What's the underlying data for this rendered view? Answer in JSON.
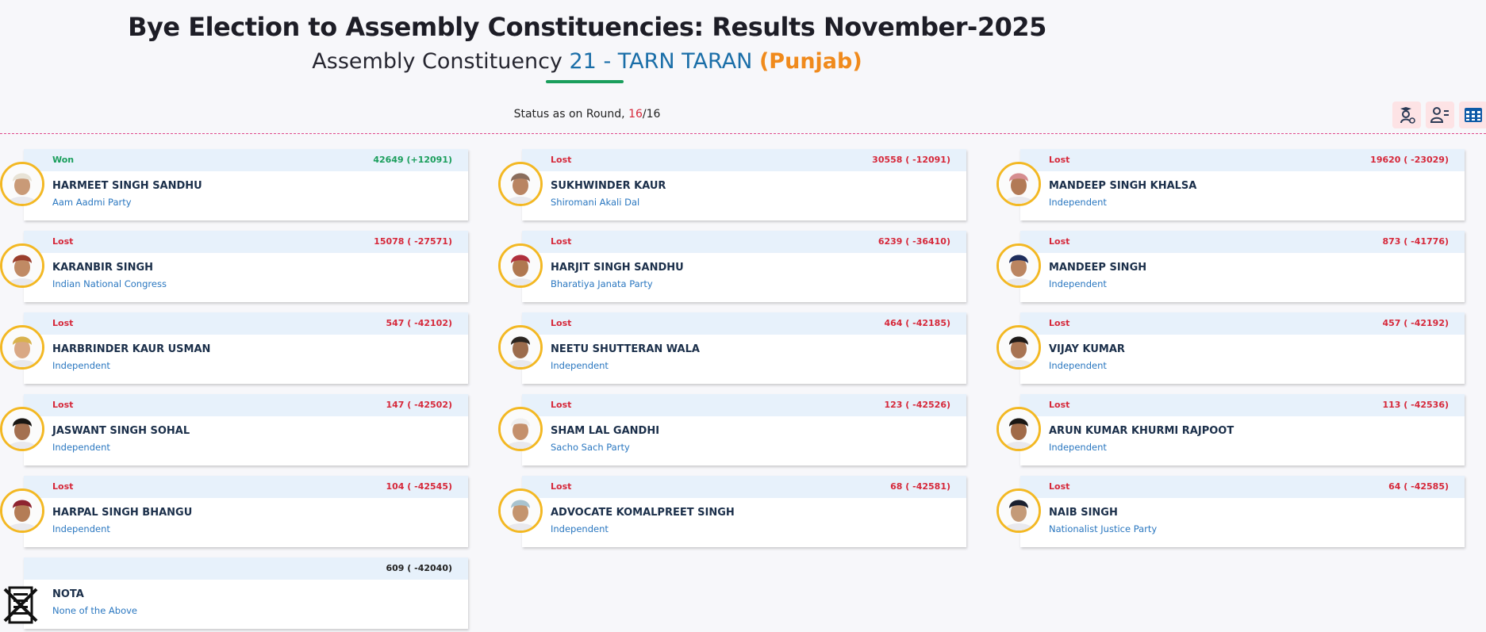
{
  "header": {
    "title": "Bye Election to Assembly Constituencies: Results November-2025",
    "ac_prefix": "Assembly Constituency",
    "ac_name": "21 - TARN TARAN",
    "state": "(Punjab)"
  },
  "status": {
    "label": "Status as on Round,",
    "current": "16",
    "total": "/16"
  },
  "toolbar": {
    "icons": [
      "candidate-stats-icon",
      "candidate-list-icon",
      "grid-view-icon"
    ]
  },
  "colors": {
    "won": "#1a9e5c",
    "lost": "#d6283a",
    "party": "#2a77c0",
    "ring": "#f3b823",
    "header_bg": "#e7f1fb"
  },
  "candidates": [
    {
      "status": "Won",
      "votes": "42649 (+12091)",
      "name": "HARMEET SINGH SANDHU",
      "party": "Aam Aadmi Party",
      "turban": "#e8e3d6",
      "skin": "#c99a77"
    },
    {
      "status": "Lost",
      "votes": "30558 ( -12091)",
      "name": "SUKHWINDER KAUR",
      "party": "Shiromani Akali Dal",
      "turban": "#8a6d5c",
      "skin": "#b98462"
    },
    {
      "status": "Lost",
      "votes": "19620 ( -23029)",
      "name": "MANDEEP SINGH KHALSA",
      "party": "Independent",
      "turban": "#d68d8f",
      "skin": "#b27a56"
    },
    {
      "status": "Lost",
      "votes": "15078 ( -27571)",
      "name": "KARANBIR SINGH",
      "party": "Indian National Congress",
      "turban": "#9a3e2c",
      "skin": "#c08a64"
    },
    {
      "status": "Lost",
      "votes": "6239 ( -36410)",
      "name": "HARJIT SINGH SANDHU",
      "party": "Bharatiya Janata Party",
      "turban": "#b0303c",
      "skin": "#b07850"
    },
    {
      "status": "Lost",
      "votes": "873 ( -41776)",
      "name": "MANDEEP SINGH",
      "party": "Independent",
      "turban": "#1f2e5c",
      "skin": "#bb8560"
    },
    {
      "status": "Lost",
      "votes": "547 ( -42102)",
      "name": "HARBRINDER KAUR USMAN",
      "party": "Independent",
      "turban": "#d9b24c",
      "skin": "#d9a884"
    },
    {
      "status": "Lost",
      "votes": "464 ( -42185)",
      "name": "NEETU SHUTTERAN WALA",
      "party": "Independent",
      "turban": "#2b2520",
      "skin": "#9c6c4c"
    },
    {
      "status": "Lost",
      "votes": "457 ( -42192)",
      "name": "VIJAY KUMAR",
      "party": "Independent",
      "turban": "#1e1a18",
      "skin": "#a87452"
    },
    {
      "status": "Lost",
      "votes": "147 ( -42502)",
      "name": "JASWANT SINGH SOHAL",
      "party": "Independent",
      "turban": "#1a1714",
      "skin": "#a47050"
    },
    {
      "status": "Lost",
      "votes": "123 ( -42526)",
      "name": "SHAM LAL GANDHI",
      "party": "Sacho Sach Party",
      "turban": "#efefef",
      "skin": "#c4906c"
    },
    {
      "status": "Lost",
      "votes": "113 ( -42536)",
      "name": "ARUN KUMAR KHURMI RAJPOOT",
      "party": "Independent",
      "turban": "#1a1714",
      "skin": "#a06a48"
    },
    {
      "status": "Lost",
      "votes": "104 ( -42545)",
      "name": "HARPAL SINGH BHANGU",
      "party": "Independent",
      "turban": "#8e2430",
      "skin": "#b47c56"
    },
    {
      "status": "Lost",
      "votes": "68 ( -42581)",
      "name": "ADVOCATE KOMALPREET SINGH",
      "party": "Independent",
      "turban": "#a9c3cf",
      "skin": "#c4946e"
    },
    {
      "status": "Lost",
      "votes": "64 ( -42585)",
      "name": "NAIB SINGH",
      "party": "Nationalist Justice Party",
      "turban": "#1a1f2e",
      "skin": "#c49a78"
    },
    {
      "status": "",
      "votes": "609 ( -42040)",
      "name": "NOTA",
      "party": "None of the Above",
      "turban": "",
      "skin": ""
    }
  ]
}
